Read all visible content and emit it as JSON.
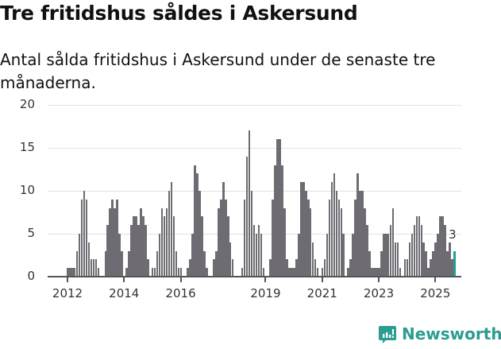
{
  "header": {
    "title": "Tre fritidshus såldes i Askersund",
    "subtitle": "Antal sålda fritidshus i Askersund under de senaste tre månaderna."
  },
  "brand": {
    "name": "Newsworthy",
    "icon": "newsworthy-logo-icon",
    "color": "#2a9d8f"
  },
  "colors": {
    "bar": "#6e6c72",
    "highlight": "#1f9f93",
    "grid": "#e2e2e2"
  },
  "chart_data": {
    "type": "bar",
    "title": "Tre fritidshus såldes i Askersund",
    "subtitle": "Antal sålda fritidshus i Askersund under de senaste tre månaderna.",
    "xlabel": "",
    "ylabel": "",
    "ylim": [
      0,
      20
    ],
    "yticks": [
      0,
      5,
      10,
      15,
      20
    ],
    "xticks": [
      "2012",
      "2014",
      "2016",
      "2019",
      "2021",
      "2023",
      "2025"
    ],
    "grid": true,
    "legend": null,
    "start": "2012-01",
    "frequency": "monthly",
    "annotation": {
      "label": "3",
      "target": "last"
    },
    "series": [
      {
        "name": "Antal sålda fritidshus (rullande 3 mån)",
        "values": [
          1,
          1,
          1,
          1,
          3,
          5,
          9,
          10,
          9,
          4,
          2,
          2,
          2,
          1,
          0,
          0,
          3,
          6,
          8,
          9,
          8,
          9,
          5,
          3,
          0,
          1,
          3,
          6,
          7,
          7,
          6,
          8,
          7,
          6,
          2,
          0,
          1,
          1,
          3,
          5,
          8,
          7,
          8,
          10,
          11,
          7,
          3,
          1,
          1,
          0,
          0,
          1,
          2,
          5,
          13,
          12,
          10,
          7,
          3,
          1,
          0,
          0,
          2,
          3,
          8,
          9,
          11,
          9,
          7,
          4,
          2,
          0,
          0,
          0,
          1,
          9,
          14,
          17,
          10,
          6,
          5,
          6,
          5,
          1,
          0,
          0,
          2,
          9,
          13,
          16,
          16,
          13,
          8,
          2,
          1,
          1,
          1,
          2,
          5,
          11,
          11,
          10,
          9,
          8,
          4,
          2,
          1,
          0,
          1,
          2,
          5,
          9,
          11,
          12,
          10,
          9,
          8,
          5,
          0,
          1,
          2,
          5,
          9,
          12,
          10,
          10,
          8,
          6,
          3,
          1,
          1,
          1,
          1,
          3,
          5,
          5,
          5,
          6,
          8,
          4,
          4,
          1,
          0,
          2,
          2,
          4,
          5,
          6,
          7,
          7,
          6,
          4,
          3,
          1,
          2,
          3,
          4,
          5,
          7,
          7,
          6,
          3,
          4,
          2,
          3
        ]
      }
    ]
  }
}
